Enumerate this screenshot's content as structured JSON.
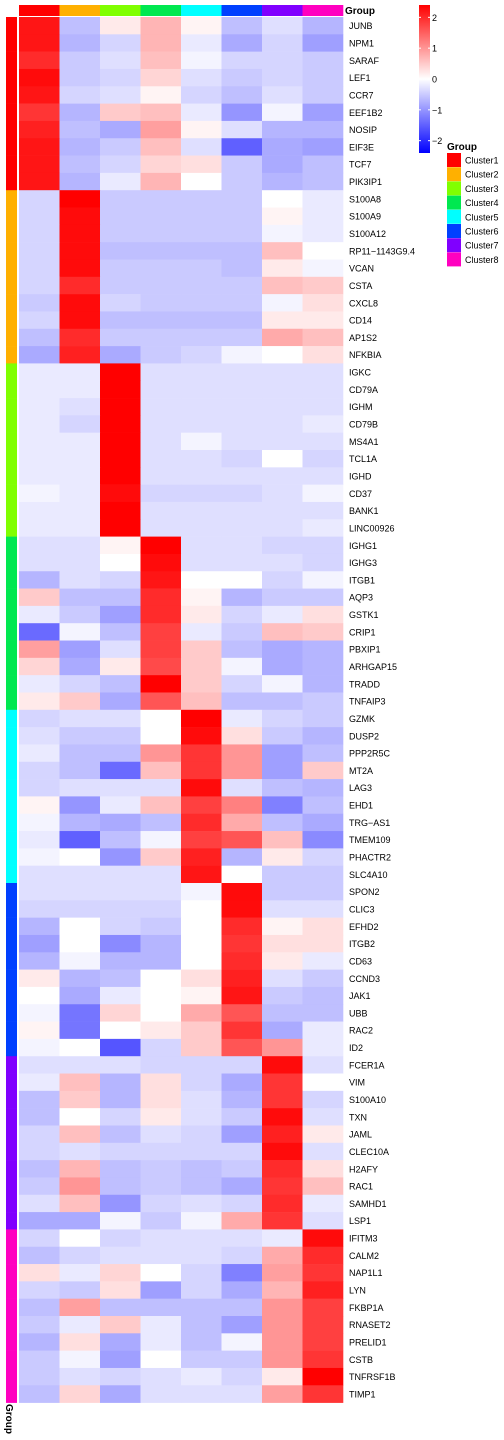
{
  "chart_data": {
    "type": "heatmap",
    "column_annotation_title": "Group",
    "row_annotation_label": "Group",
    "groups": [
      "Cluster1",
      "Cluster2",
      "Cluster3",
      "Cluster4",
      "Cluster5",
      "Cluster6",
      "Cluster7",
      "Cluster8"
    ],
    "group_colors": [
      "#FF0000",
      "#FFB000",
      "#80FF00",
      "#00E850",
      "#00FFFF",
      "#0040FF",
      "#8000FF",
      "#FF00C0"
    ],
    "legend_title": "Group",
    "colorbar": {
      "ticks": [
        2,
        1,
        0,
        -1,
        -2
      ],
      "tick_labels": [
        "2",
        "1",
        "0",
        "−1",
        "−2"
      ],
      "range": [
        -2.4,
        2.4
      ],
      "low_color": "#0000FF",
      "mid_color": "#FFFFFF",
      "high_color": "#FF0000"
    },
    "row_groups": [
      0,
      0,
      0,
      0,
      0,
      0,
      0,
      0,
      0,
      0,
      1,
      1,
      1,
      1,
      1,
      1,
      1,
      1,
      1,
      1,
      2,
      2,
      2,
      2,
      2,
      2,
      2,
      2,
      2,
      2,
      3,
      3,
      3,
      3,
      3,
      3,
      3,
      3,
      3,
      3,
      4,
      4,
      4,
      4,
      4,
      4,
      4,
      4,
      4,
      4,
      5,
      5,
      5,
      5,
      5,
      5,
      5,
      5,
      5,
      5,
      6,
      6,
      6,
      6,
      6,
      6,
      6,
      6,
      6,
      6,
      7,
      7,
      7,
      7,
      7,
      7,
      7,
      7,
      7,
      7
    ],
    "genes": [
      "JUNB",
      "NPM1",
      "SARAF",
      "LEF1",
      "CCR7",
      "EEF1B2",
      "NOSIP",
      "EIF3E",
      "TCF7",
      "PIK3IP1",
      "S100A8",
      "S100A9",
      "S100A12",
      "RP11−1143G9.4",
      "VCAN",
      "CSTA",
      "CXCL8",
      "CD14",
      "AP1S2",
      "NFKBIA",
      "IGKC",
      "CD79A",
      "IGHM",
      "CD79B",
      "MS4A1",
      "TCL1A",
      "IGHD",
      "CD37",
      "BANK1",
      "LINC00926",
      "IGHG1",
      "IGHG3",
      "ITGB1",
      "AQP3",
      "GSTK1",
      "CRIP1",
      "PBXIP1",
      "ARHGAP15",
      "TRADD",
      "TNFAIP3",
      "GZMK",
      "DUSP2",
      "PPP2R5C",
      "MT2A",
      "LAG3",
      "EHD1",
      "TRG−AS1",
      "TMEM109",
      "PHACTR2",
      "SLC4A10",
      "SPON2",
      "CLIC3",
      "EFHD2",
      "ITGB2",
      "CD63",
      "CCND3",
      "JAK1",
      "UBB",
      "RAC2",
      "ID2",
      "FCER1A",
      "VIM",
      "S100A10",
      "TXN",
      "JAML",
      "CLEC10A",
      "H2AFY",
      "RAC1",
      "SAMHD1",
      "LSP1",
      "IFITM3",
      "CALM2",
      "NAP1L1",
      "LYN",
      "FKBP1A",
      "RNASET2",
      "PRELID1",
      "CSTB",
      "TNFRSF1B",
      "TIMP1"
    ],
    "values": [
      [
        2.2,
        -0.6,
        0.2,
        0.7,
        0.1,
        -0.6,
        -0.3,
        -0.7
      ],
      [
        2.2,
        -0.7,
        -0.4,
        0.7,
        -0.2,
        -0.8,
        -0.4,
        -0.9
      ],
      [
        2.0,
        -0.5,
        -0.3,
        0.6,
        -0.1,
        -0.4,
        -0.4,
        -0.5
      ],
      [
        2.3,
        -0.5,
        -0.4,
        0.4,
        -0.3,
        -0.5,
        -0.4,
        -0.5
      ],
      [
        2.2,
        -0.4,
        -0.3,
        0.1,
        -0.4,
        -0.6,
        -0.3,
        -0.5
      ],
      [
        1.9,
        -0.7,
        0.5,
        0.6,
        -0.2,
        -1.0,
        -0.1,
        -0.9
      ],
      [
        2.1,
        -0.6,
        -0.8,
        0.9,
        0.1,
        -0.3,
        -0.7,
        -0.7
      ],
      [
        2.2,
        -0.7,
        -0.5,
        0.6,
        -0.3,
        -1.5,
        -0.8,
        -0.9
      ],
      [
        2.2,
        -0.6,
        -0.4,
        0.4,
        0.3,
        -0.5,
        -0.8,
        -0.6
      ],
      [
        2.2,
        -0.7,
        -0.2,
        0.7,
        0.0,
        -0.5,
        -0.7,
        -0.6
      ],
      [
        -0.4,
        2.4,
        -0.5,
        -0.5,
        -0.5,
        -0.5,
        0.0,
        -0.2
      ],
      [
        -0.4,
        2.3,
        -0.5,
        -0.5,
        -0.5,
        -0.5,
        0.1,
        -0.2
      ],
      [
        -0.4,
        2.3,
        -0.5,
        -0.5,
        -0.5,
        -0.5,
        -0.1,
        -0.2
      ],
      [
        -0.4,
        2.3,
        -0.6,
        -0.6,
        -0.6,
        -0.6,
        0.6,
        0.0
      ],
      [
        -0.4,
        2.3,
        -0.5,
        -0.5,
        -0.5,
        -0.6,
        0.2,
        -0.1
      ],
      [
        -0.4,
        2.0,
        -0.5,
        -0.5,
        -0.5,
        -0.5,
        0.6,
        0.5
      ],
      [
        -0.5,
        2.3,
        -0.4,
        -0.5,
        -0.5,
        -0.5,
        -0.1,
        0.3
      ],
      [
        -0.4,
        2.3,
        -0.6,
        -0.6,
        -0.6,
        -0.6,
        0.2,
        0.2
      ],
      [
        -0.6,
        2.0,
        -0.5,
        -0.5,
        -0.5,
        -0.5,
        0.8,
        0.6
      ],
      [
        -0.8,
        2.1,
        -0.8,
        -0.5,
        -0.4,
        -0.1,
        0.0,
        0.3
      ],
      [
        -0.2,
        -0.2,
        2.4,
        -0.3,
        -0.3,
        -0.3,
        -0.3,
        -0.3
      ],
      [
        -0.2,
        -0.2,
        2.4,
        -0.3,
        -0.3,
        -0.3,
        -0.3,
        -0.3
      ],
      [
        -0.2,
        -0.3,
        2.4,
        -0.3,
        -0.3,
        -0.3,
        -0.3,
        -0.3
      ],
      [
        -0.2,
        -0.4,
        2.4,
        -0.3,
        -0.3,
        -0.3,
        -0.3,
        -0.2
      ],
      [
        -0.2,
        -0.2,
        2.4,
        -0.3,
        -0.1,
        -0.3,
        -0.3,
        -0.3
      ],
      [
        -0.2,
        -0.2,
        2.4,
        -0.3,
        -0.3,
        -0.4,
        0.0,
        -0.4
      ],
      [
        -0.2,
        -0.2,
        2.4,
        -0.3,
        -0.3,
        -0.3,
        -0.3,
        -0.3
      ],
      [
        -0.1,
        -0.2,
        2.3,
        -0.4,
        -0.4,
        -0.4,
        -0.3,
        -0.1
      ],
      [
        -0.2,
        -0.2,
        2.4,
        -0.3,
        -0.3,
        -0.3,
        -0.3,
        -0.3
      ],
      [
        -0.2,
        -0.2,
        2.4,
        -0.3,
        -0.3,
        -0.3,
        -0.3,
        -0.2
      ],
      [
        -0.3,
        -0.3,
        0.1,
        2.4,
        -0.3,
        -0.3,
        -0.4,
        -0.4
      ],
      [
        -0.3,
        -0.3,
        0.0,
        2.3,
        -0.3,
        -0.3,
        -0.3,
        -0.4
      ],
      [
        -0.7,
        -0.3,
        -0.4,
        2.2,
        0.0,
        0.0,
        -0.4,
        -0.1
      ],
      [
        0.5,
        -0.6,
        -0.6,
        2.0,
        0.1,
        -0.7,
        -0.5,
        -0.5
      ],
      [
        -0.2,
        -0.5,
        -0.9,
        2.0,
        0.2,
        -0.4,
        -0.2,
        0.3
      ],
      [
        -1.4,
        -0.1,
        -0.6,
        1.8,
        -0.2,
        -0.5,
        0.6,
        0.5
      ],
      [
        0.9,
        -0.9,
        -0.3,
        1.8,
        0.5,
        -0.6,
        -0.8,
        -0.7
      ],
      [
        0.4,
        -0.8,
        0.2,
        1.7,
        0.5,
        -0.1,
        -0.8,
        -0.7
      ],
      [
        -0.2,
        -0.4,
        -0.6,
        2.4,
        0.5,
        -0.4,
        -0.1,
        -0.7
      ],
      [
        0.2,
        0.5,
        -0.8,
        1.6,
        0.6,
        -0.6,
        -0.6,
        -0.5
      ],
      [
        -0.4,
        -0.3,
        -0.3,
        0.0,
        2.4,
        -0.2,
        -0.4,
        -0.5
      ],
      [
        -0.3,
        -0.5,
        -0.5,
        0.0,
        2.3,
        0.3,
        -0.5,
        -0.7
      ],
      [
        -0.2,
        -0.6,
        -0.6,
        1.0,
        1.9,
        1.0,
        -0.9,
        -0.6
      ],
      [
        -0.4,
        -0.6,
        -1.4,
        0.6,
        1.9,
        1.0,
        -0.9,
        0.5
      ],
      [
        -0.4,
        -0.3,
        -0.3,
        -0.3,
        2.3,
        -0.3,
        -0.6,
        -0.7
      ],
      [
        0.1,
        -1.0,
        -0.2,
        0.6,
        1.8,
        1.2,
        -1.2,
        -0.6
      ],
      [
        -0.1,
        -0.7,
        -0.8,
        -0.6,
        2.0,
        0.8,
        -0.6,
        -0.8
      ],
      [
        -0.2,
        -1.5,
        -0.6,
        -0.1,
        1.8,
        1.6,
        0.6,
        -1.1
      ],
      [
        -0.1,
        0.0,
        -1.0,
        0.5,
        2.1,
        -0.7,
        0.2,
        -0.4
      ],
      [
        -0.3,
        -0.3,
        -0.3,
        -0.3,
        2.2,
        0.0,
        -0.5,
        -0.5
      ],
      [
        -0.3,
        -0.3,
        -0.3,
        -0.3,
        -0.1,
        2.3,
        -0.5,
        -0.5
      ],
      [
        -0.4,
        -0.4,
        -0.4,
        -0.4,
        0.0,
        2.3,
        -0.3,
        -0.3
      ],
      [
        -0.7,
        0.0,
        -0.4,
        -0.5,
        0.0,
        2.0,
        0.1,
        0.3
      ],
      [
        -0.9,
        0.0,
        -1.1,
        -0.7,
        0.0,
        1.9,
        0.3,
        0.3
      ],
      [
        -0.7,
        -0.1,
        -0.7,
        -0.7,
        0.0,
        2.0,
        0.2,
        -0.2
      ],
      [
        0.2,
        -0.7,
        -0.6,
        0.0,
        0.3,
        2.1,
        -0.3,
        -0.5
      ],
      [
        0.0,
        -0.8,
        -0.2,
        0.0,
        0.1,
        2.2,
        -0.5,
        -0.6
      ],
      [
        -0.1,
        -1.3,
        0.4,
        0.0,
        0.8,
        1.6,
        -0.6,
        -0.6
      ],
      [
        0.1,
        -1.3,
        0.0,
        0.2,
        0.5,
        1.9,
        -0.8,
        -0.2
      ],
      [
        -0.1,
        0.0,
        -1.6,
        -0.4,
        0.5,
        1.6,
        1.0,
        -0.2
      ],
      [
        -0.3,
        -0.3,
        -0.3,
        -0.4,
        -0.4,
        -0.4,
        2.3,
        -0.3
      ],
      [
        -0.2,
        0.6,
        -0.7,
        0.3,
        -0.4,
        -0.8,
        1.9,
        0.0
      ],
      [
        -0.6,
        0.5,
        -0.7,
        0.3,
        -0.3,
        -0.7,
        1.9,
        -0.4
      ],
      [
        -0.6,
        0.0,
        -0.4,
        0.2,
        -0.3,
        -0.5,
        2.3,
        -0.3
      ],
      [
        -0.4,
        0.6,
        -0.6,
        -0.3,
        -0.4,
        -0.9,
        2.1,
        0.2
      ],
      [
        -0.4,
        -0.3,
        -0.4,
        -0.4,
        -0.4,
        -0.4,
        2.3,
        -0.3
      ],
      [
        -0.6,
        0.7,
        -0.6,
        -0.5,
        -0.6,
        -0.5,
        2.0,
        0.3
      ],
      [
        -0.5,
        1.0,
        -0.6,
        -0.5,
        -0.6,
        -0.8,
        1.9,
        0.6
      ],
      [
        -0.3,
        0.6,
        -1.0,
        -0.4,
        -0.3,
        -0.4,
        2.0,
        -0.2
      ],
      [
        -0.8,
        -0.8,
        -0.1,
        -0.5,
        -0.1,
        0.8,
        1.9,
        -0.3
      ],
      [
        -0.4,
        0.0,
        -0.4,
        -0.3,
        -0.3,
        -0.3,
        -0.2,
        2.3
      ],
      [
        -0.6,
        -0.4,
        -0.3,
        -0.3,
        -0.3,
        -0.4,
        0.8,
        2.0
      ],
      [
        0.3,
        -0.2,
        0.4,
        0.0,
        -0.4,
        -1.2,
        0.9,
        1.9
      ],
      [
        -0.4,
        -0.5,
        0.3,
        -0.9,
        -0.4,
        -0.8,
        0.7,
        2.1
      ],
      [
        -0.6,
        0.9,
        -0.6,
        -0.6,
        -0.6,
        -0.6,
        1.0,
        1.8
      ],
      [
        -0.5,
        -0.2,
        0.5,
        -0.2,
        -0.6,
        -0.9,
        1.0,
        1.8
      ],
      [
        -0.7,
        0.3,
        -0.8,
        -0.2,
        -0.6,
        -0.1,
        1.0,
        1.8
      ],
      [
        -0.5,
        -0.1,
        -0.9,
        0.0,
        -0.5,
        -0.5,
        1.0,
        1.9
      ],
      [
        -0.5,
        -0.3,
        -0.4,
        -0.3,
        -0.2,
        -0.4,
        0.2,
        2.4
      ],
      [
        -0.6,
        0.4,
        -0.8,
        -0.3,
        -0.3,
        -0.3,
        0.9,
        1.9
      ]
    ]
  }
}
